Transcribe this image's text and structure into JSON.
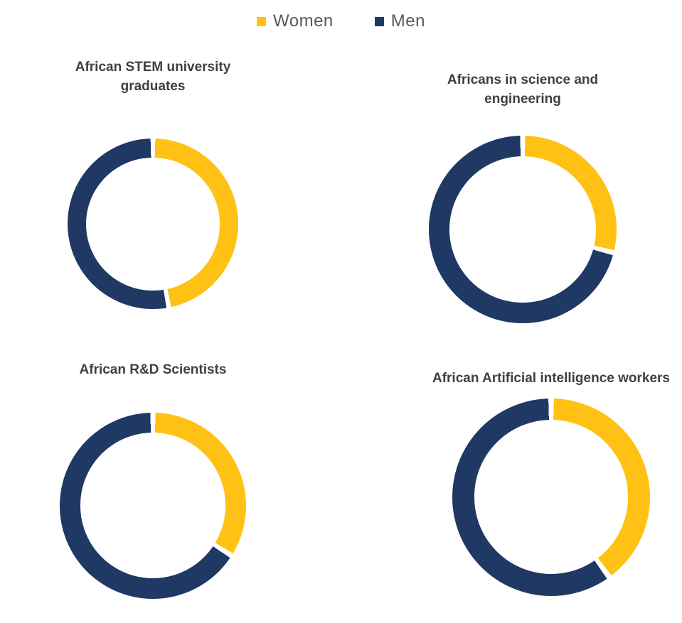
{
  "page": {
    "background": "#ffffff"
  },
  "colors": {
    "women": "#FFC214",
    "men": "#1F3864",
    "title_text": "#404040",
    "legend_text": "#595959"
  },
  "legend": {
    "position": "top-center",
    "items": [
      {
        "label": "Women",
        "color": "#FFC214"
      },
      {
        "label": "Men",
        "color": "#1F3864"
      }
    ]
  },
  "chart_data": [
    {
      "type": "pie",
      "subtype": "donut",
      "title": "African STEM university graduates",
      "categories": [
        "Women",
        "Men"
      ],
      "values": [
        47,
        53
      ],
      "units": "percent",
      "start_angle": "top",
      "direction": "clockwise",
      "legend_position": "shared-top"
    },
    {
      "type": "pie",
      "subtype": "donut",
      "title": "Africans in science and engineering",
      "categories": [
        "Women",
        "Men"
      ],
      "values": [
        29,
        71
      ],
      "units": "percent",
      "start_angle": "top",
      "direction": "clockwise",
      "legend_position": "shared-top"
    },
    {
      "type": "pie",
      "subtype": "donut",
      "title": "African R&D Scientists",
      "categories": [
        "Women",
        "Men"
      ],
      "values": [
        34,
        66
      ],
      "units": "percent",
      "start_angle": "top",
      "direction": "clockwise",
      "legend_position": "shared-top"
    },
    {
      "type": "pie",
      "subtype": "donut",
      "title": "African Artificial intelligence workers",
      "categories": [
        "Women",
        "Men"
      ],
      "values": [
        40,
        60
      ],
      "units": "percent",
      "start_angle": "top",
      "direction": "clockwise",
      "legend_position": "shared-top"
    }
  ]
}
